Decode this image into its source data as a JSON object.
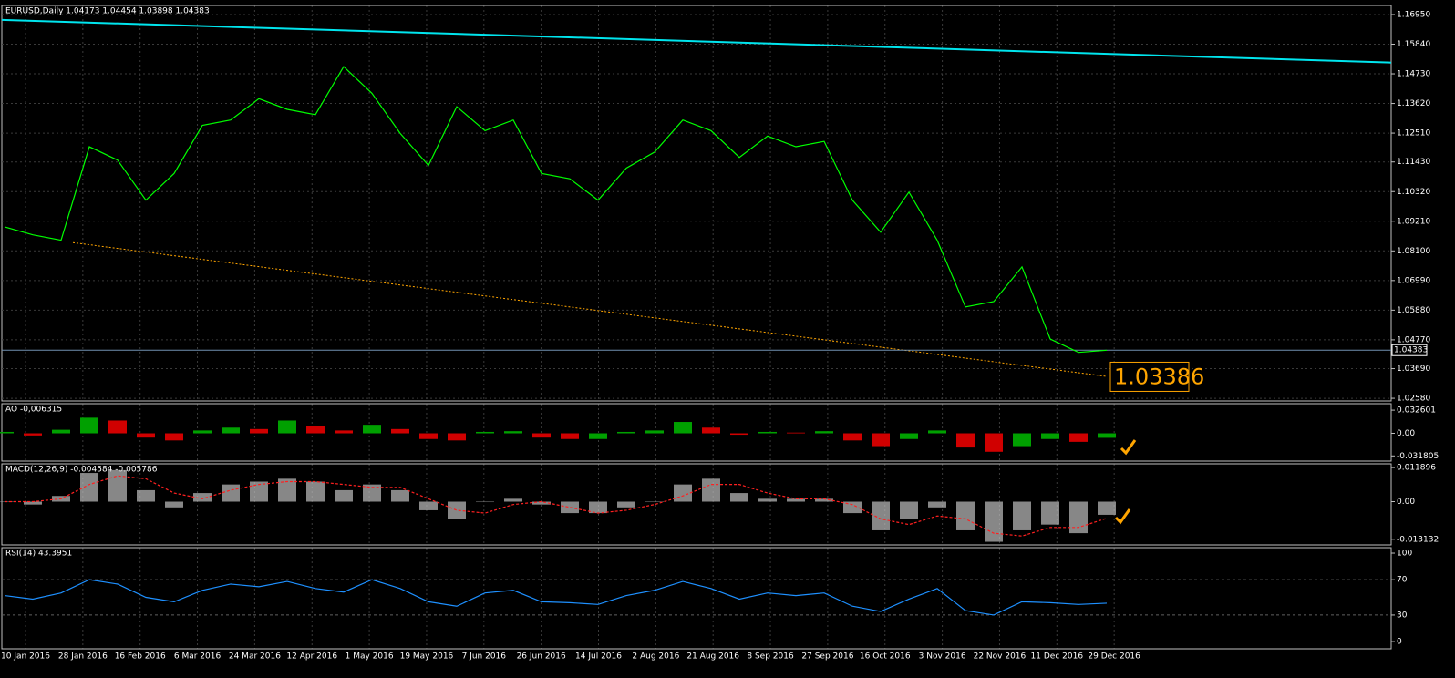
{
  "chart_data": [
    {
      "type": "line",
      "title": "EURUSD,Daily  1.04173 1.04454 1.03898 1.04383",
      "color": "#00ff00",
      "values": [
        1.09,
        1.087,
        1.085,
        1.12,
        1.115,
        1.1,
        1.11,
        1.128,
        1.13,
        1.138,
        1.134,
        1.132,
        1.15,
        1.14,
        1.125,
        1.113,
        1.135,
        1.126,
        1.13,
        1.11,
        1.108,
        1.1,
        1.112,
        1.118,
        1.13,
        1.126,
        1.116,
        1.124,
        1.12,
        1.122,
        1.1,
        1.088,
        1.103,
        1.085,
        1.06,
        1.062,
        1.075,
        1.048,
        1.043,
        1.0438
      ],
      "moving_average": {
        "color": "#00e5ee",
        "values": [
          1.1675,
          1.1515
        ]
      },
      "trendline": {
        "color": "#ffa500",
        "values": [
          1.0841,
          1.034
        ]
      },
      "last_price": {
        "value": 1.04383,
        "label": "1.04383"
      },
      "annotation": {
        "value": 1.03386,
        "label": "1.03386",
        "color": "#ffa500"
      },
      "ylim": [
        1.0248,
        1.1729
      ],
      "yticks": [
        {
          "value": 1.1695,
          "label": "1.16950"
        },
        {
          "value": 1.1584,
          "label": "1.15840"
        },
        {
          "value": 1.1473,
          "label": "1.14730"
        },
        {
          "value": 1.1362,
          "label": "1.13620"
        },
        {
          "value": 1.1251,
          "label": "1.12510"
        },
        {
          "value": 1.1143,
          "label": "1.11430"
        },
        {
          "value": 1.1032,
          "label": "1.10320"
        },
        {
          "value": 1.0921,
          "label": "1.09210"
        },
        {
          "value": 1.081,
          "label": "1.08100"
        },
        {
          "value": 1.0699,
          "label": "1.06990"
        },
        {
          "value": 1.0588,
          "label": "1.05880"
        },
        {
          "value": 1.0477,
          "label": "1.04770"
        },
        {
          "value": 1.0369,
          "label": "1.03690"
        },
        {
          "value": 1.0258,
          "label": "1.02580"
        }
      ],
      "grid": true
    },
    {
      "type": "histogram",
      "title": "AO -0,006315",
      "up_color": "#00a000",
      "down_color": "#d00000",
      "values": [
        0.002,
        -0.003,
        0.005,
        0.022,
        0.018,
        -0.006,
        -0.01,
        0.004,
        0.008,
        0.006,
        0.018,
        0.01,
        0.004,
        0.012,
        0.006,
        -0.008,
        -0.01,
        0.002,
        0.003,
        -0.006,
        -0.008,
        -0.008,
        0.002,
        0.004,
        0.016,
        0.008,
        -0.002,
        0.002,
        0.001,
        0.003,
        -0.01,
        -0.018,
        -0.008,
        0.004,
        -0.02,
        -0.026,
        -0.018,
        -0.008,
        -0.012,
        -0.006315
      ],
      "ylim": [
        -0.0391,
        0.0417
      ],
      "yticks": [
        0.032601,
        {
          "value": 0,
          "label": "0.00"
        },
        -0.031805
      ]
    },
    {
      "type": "macd",
      "title": "MACD(12,26,9) -0.004584 -0.005786",
      "color": "#c0c0c0",
      "signal_color": "#ff2020",
      "values": [
        0.0,
        -0.001,
        0.002,
        0.01,
        0.011,
        0.004,
        -0.002,
        0.003,
        0.006,
        0.007,
        0.008,
        0.007,
        0.004,
        0.006,
        0.004,
        -0.003,
        -0.006,
        0.0,
        0.001,
        -0.001,
        -0.004,
        -0.004,
        -0.002,
        0.0,
        0.006,
        0.008,
        0.003,
        0.001,
        0.001,
        0.001,
        -0.004,
        -0.01,
        -0.006,
        -0.002,
        -0.01,
        -0.014,
        -0.01,
        -0.008,
        -0.011,
        -0.004584
      ],
      "signal": [
        0.0,
        0.0,
        0.001,
        0.006,
        0.009,
        0.008,
        0.003,
        0.001,
        0.004,
        0.006,
        0.007,
        0.007,
        0.006,
        0.005,
        0.005,
        0.001,
        -0.003,
        -0.004,
        -0.001,
        0.0,
        -0.002,
        -0.004,
        -0.003,
        -0.001,
        0.002,
        0.006,
        0.006,
        0.003,
        0.001,
        0.001,
        -0.001,
        -0.006,
        -0.008,
        -0.005,
        -0.006,
        -0.011,
        -0.012,
        -0.009,
        -0.009,
        -0.005786
      ],
      "ylim": [
        -0.0151,
        0.0132
      ],
      "yticks": [
        0.011896,
        {
          "value": 0,
          "label": "0.00"
        },
        -0.013132
      ]
    },
    {
      "type": "line",
      "title": "RSI(14) 43.3951",
      "color": "#1e90ff",
      "values": [
        52,
        48,
        55,
        70,
        65,
        50,
        45,
        58,
        65,
        62,
        68,
        60,
        56,
        70,
        60,
        45,
        40,
        55,
        58,
        45,
        44,
        42,
        52,
        58,
        68,
        60,
        48,
        55,
        52,
        55,
        40,
        34,
        48,
        60,
        35,
        30,
        45,
        44,
        42,
        43.3951
      ],
      "ylim": [
        -8.2,
        106.2
      ],
      "yticks": [
        100,
        70,
        30,
        0
      ],
      "levels": [
        70,
        30
      ]
    }
  ],
  "date_axis": {
    "labels": [
      "10 Jan 2016",
      "28 Jan 2016",
      "16 Feb 2016",
      "6 Mar 2016",
      "24 Mar 2016",
      "12 Apr 2016",
      "1 May 2016",
      "19 May 2016",
      "7 Jun 2016",
      "26 Jun 2016",
      "14 Jul 2016",
      "2 Aug 2016",
      "21 Aug 2016",
      "8 Sep 2016",
      "27 Sep 2016",
      "16 Oct 2016",
      "3 Nov 2016",
      "22 Nov 2016",
      "11 Dec 2016",
      "29 Dec 2016"
    ]
  }
}
